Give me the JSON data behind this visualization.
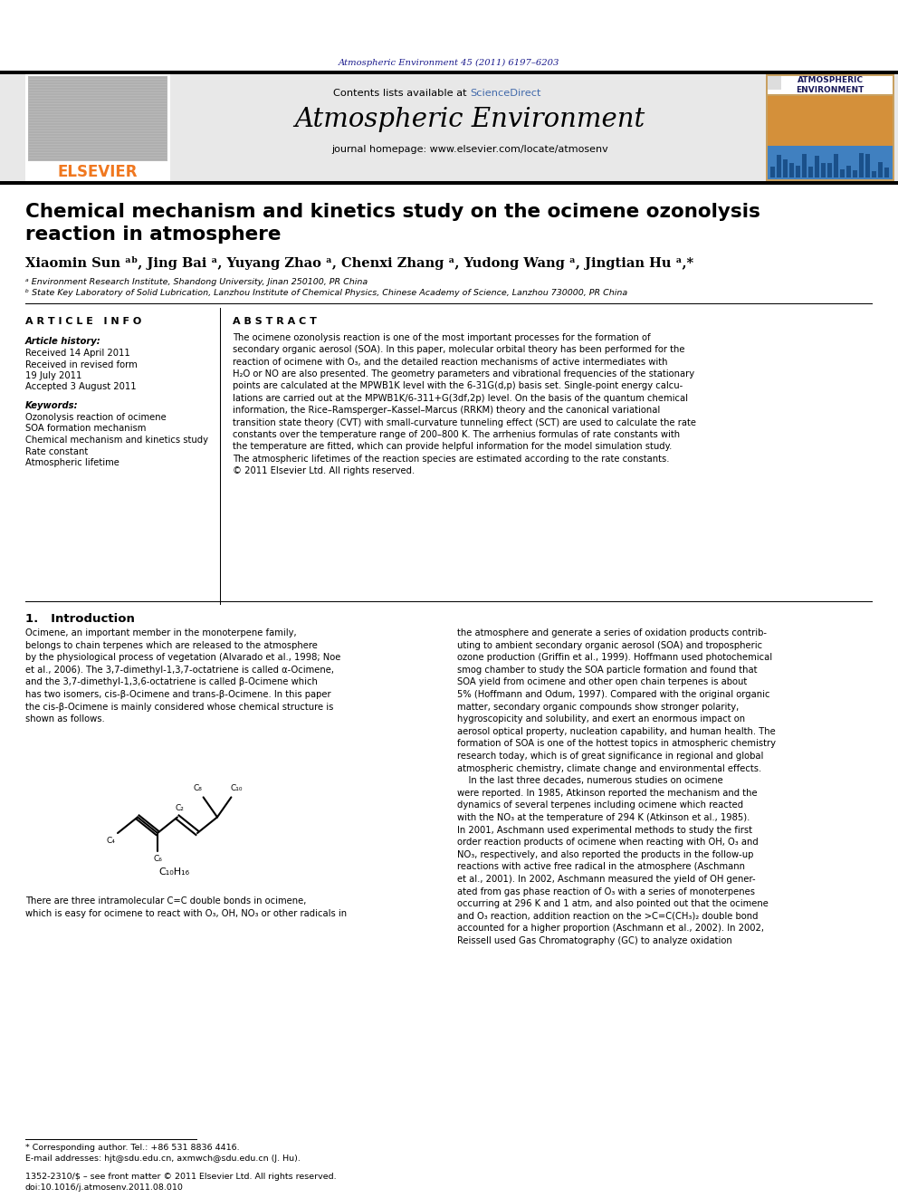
{
  "page_bg": "#ffffff",
  "top_citation": "Atmospheric Environment 45 (2011) 6197–6203",
  "journal_title": "Atmospheric Environment",
  "journal_homepage": "journal homepage: www.elsevier.com/locate/atmosenv",
  "contents_text": "Contents lists available at ",
  "sciencedirect_text": "ScienceDirect",
  "sciencedirect_color": "#4169aa",
  "elsevier_color": "#f07820",
  "header_bg": "#e8e8e8",
  "paper_title_line1": "Chemical mechanism and kinetics study on the ocimene ozonolysis",
  "paper_title_line2": "reaction in atmosphere",
  "authors": "Xiaomin Sun ᵃᵇ, Jing Bai ᵃ, Yuyang Zhao ᵃ, Chenxi Zhang ᵃ, Yudong Wang ᵃ, Jingtian Hu ᵃ,*",
  "affil_a": "ᵃ Environment Research Institute, Shandong University, Jinan 250100, PR China",
  "affil_b": "ᵇ State Key Laboratory of Solid Lubrication, Lanzhou Institute of Chemical Physics, Chinese Academy of Science, Lanzhou 730000, PR China",
  "article_info_title": "A R T I C L E   I N F O",
  "abstract_title": "A B S T R A C T",
  "article_history_title": "Article history:",
  "received1": "Received 14 April 2011",
  "received2": "Received in revised form",
  "received2b": "19 July 2011",
  "accepted": "Accepted 3 August 2011",
  "keywords_title": "Keywords:",
  "keywords": [
    "Ozonolysis reaction of ocimene",
    "SOA formation mechanism",
    "Chemical mechanism and kinetics study",
    "Rate constant",
    "Atmospheric lifetime"
  ],
  "abstract_text": "The ocimene ozonolysis reaction is one of the most important processes for the formation of\nsecondary organic aerosol (SOA). In this paper, molecular orbital theory has been performed for the\nreaction of ocimene with O₃, and the detailed reaction mechanisms of active intermediates with\nH₂O or NO are also presented. The geometry parameters and vibrational frequencies of the stationary\npoints are calculated at the MPWB1K level with the 6-31G(d,p) basis set. Single-point energy calcu-\nlations are carried out at the MPWB1K/6-311+G(3df,2p) level. On the basis of the quantum chemical\ninformation, the Rice–Ramsperger–Kassel–Marcus (RRKM) theory and the canonical variational\ntransition state theory (CVT) with small-curvature tunneling effect (SCT) are used to calculate the rate\nconstants over the temperature range of 200–800 K. The arrhenius formulas of rate constants with\nthe temperature are fitted, which can provide helpful information for the model simulation study.\nThe atmospheric lifetimes of the reaction species are estimated according to the rate constants.\n© 2011 Elsevier Ltd. All rights reserved.",
  "intro_title": "1.   Introduction",
  "intro_col1_p1": "Ocimene, an important member in the monoterpene family,\nbelongs to chain terpenes which are released to the atmosphere\nby the physiological process of vegetation (Alvarado et al., 1998; Noe\net al., 2006). The 3,7-dimethyl-1,3,7-octatriene is called α-Ocimene,\nand the 3,7-dimethyl-1,3,6-octatriene is called β-Ocimene which\nhas two isomers, cis-β-Ocimene and trans-β-Ocimene. In this paper\nthe cis-β-Ocimene is mainly considered whose chemical structure is\nshown as follows.",
  "col1_bottom": "There are three intramolecular C=C double bonds in ocimene,\nwhich is easy for ocimene to react with O₃, OH, NO₃ or other radicals in",
  "intro_col2": "the atmosphere and generate a series of oxidation products contrib-\nuting to ambient secondary organic aerosol (SOA) and tropospheric\nozone production (Griffin et al., 1999). Hoffmann used photochemical\nsmog chamber to study the SOA particle formation and found that\nSOA yield from ocimene and other open chain terpenes is about\n5% (Hoffmann and Odum, 1997). Compared with the original organic\nmatter, secondary organic compounds show stronger polarity,\nhygroscopicity and solubility, and exert an enormous impact on\naerosol optical property, nucleation capability, and human health. The\nformation of SOA is one of the hottest topics in atmospheric chemistry\nresearch today, which is of great significance in regional and global\natmospheric chemistry, climate change and environmental effects.\n    In the last three decades, numerous studies on ocimene\nwere reported. In 1985, Atkinson reported the mechanism and the\ndynamics of several terpenes including ocimene which reacted\nwith the NO₃ at the temperature of 294 K (Atkinson et al., 1985).\nIn 2001, Aschmann used experimental methods to study the first\norder reaction products of ocimene when reacting with OH, O₃ and\nNO₃, respectively, and also reported the products in the follow-up\nreactions with active free radical in the atmosphere (Aschmann\net al., 2001). In 2002, Aschmann measured the yield of OH gener-\nated from gas phase reaction of O₃ with a series of monoterpenes\noccurring at 296 K and 1 atm, and also pointed out that the ocimene\nand O₃ reaction, addition reaction on the >C=C(CH₃)₂ double bond\naccounted for a higher proportion (Aschmann et al., 2002). In 2002,\nReissell used Gas Chromatography (GC) to analyze oxidation",
  "molecule_formula": "C₁₀H₁₆",
  "footnote_star": "* Corresponding author. Tel.: +86 531 8836 4416.",
  "footnote_email": "E-mail addresses: hjt@sdu.edu.cn, axmwch@sdu.edu.cn (J. Hu).",
  "footer_issn": "1352-2310/$ – see front matter © 2011 Elsevier Ltd. All rights reserved.",
  "footer_doi": "doi:10.1016/j.atmosenv.2011.08.010"
}
